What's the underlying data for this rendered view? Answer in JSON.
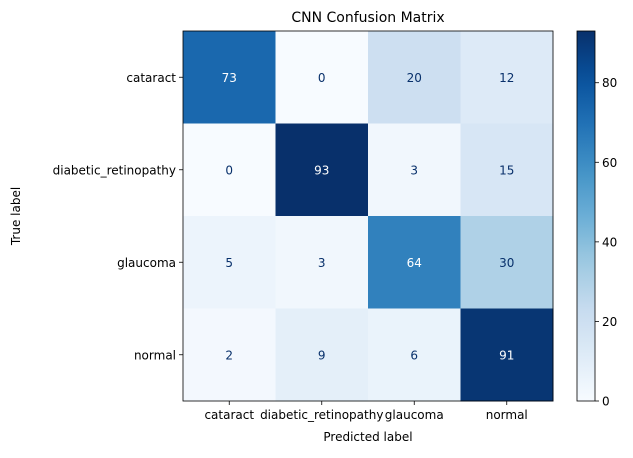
{
  "chart_data": {
    "type": "heatmap",
    "title": "CNN Confusion Matrix",
    "xlabel": "Predicted label",
    "ylabel": "True label",
    "x_categories": [
      "cataract",
      "diabetic_retinopathy",
      "glaucoma",
      "normal"
    ],
    "y_categories": [
      "cataract",
      "diabetic_retinopathy",
      "glaucoma",
      "normal"
    ],
    "matrix": [
      [
        73,
        0,
        20,
        12
      ],
      [
        0,
        93,
        3,
        15
      ],
      [
        5,
        3,
        64,
        30
      ],
      [
        2,
        9,
        6,
        91
      ]
    ],
    "colorbar": {
      "min": 0,
      "max": 93,
      "ticks": [
        0,
        20,
        40,
        60,
        80
      ],
      "colormap": "Blues"
    }
  }
}
